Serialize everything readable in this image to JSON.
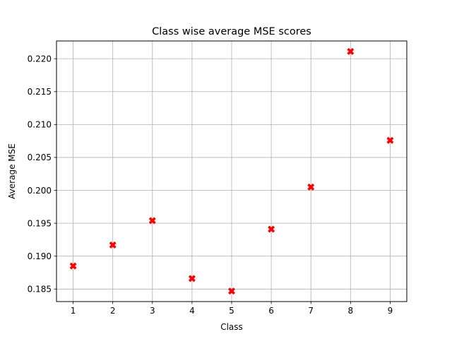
{
  "chart_data": {
    "type": "scatter",
    "title": "Class wise average MSE scores",
    "xlabel": "Class",
    "ylabel": "Average MSE",
    "x": [
      1,
      2,
      3,
      4,
      5,
      6,
      7,
      8,
      9
    ],
    "y": [
      0.1885,
      0.1917,
      0.1954,
      0.1866,
      0.1847,
      0.1941,
      0.2005,
      0.2211,
      0.2076
    ],
    "xlim": [
      0.58,
      9.42
    ],
    "ylim": [
      0.1831,
      0.2227
    ],
    "xticks": [
      1,
      2,
      3,
      4,
      5,
      6,
      7,
      8,
      9
    ],
    "yticks": [
      0.185,
      0.19,
      0.195,
      0.2,
      0.205,
      0.21,
      0.215,
      0.22
    ],
    "ytick_labels": [
      "0.185",
      "0.190",
      "0.195",
      "0.200",
      "0.205",
      "0.210",
      "0.215",
      "0.220"
    ],
    "grid": true,
    "marker": "X",
    "marker_color": "#ff0000"
  }
}
